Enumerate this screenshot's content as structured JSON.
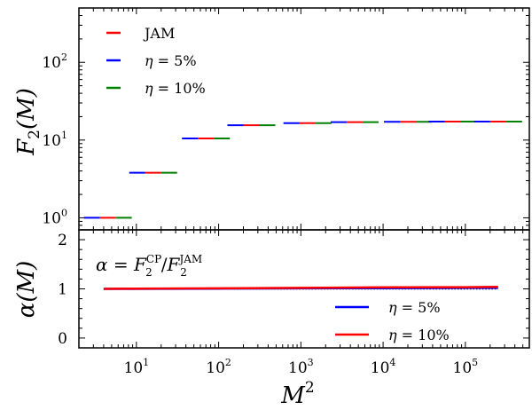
{
  "chart_data": [
    {
      "type": "scatter",
      "panel": "top",
      "yscale": "log",
      "xscale": "log",
      "ylabel": {
        "base": "F",
        "sub": "2",
        "arg": "(M)"
      },
      "ylim": [
        0.7,
        500
      ],
      "yticks": [
        {
          "value": 1,
          "base": "10",
          "exp": "0"
        },
        {
          "value": 10,
          "base": "10",
          "exp": "1"
        },
        {
          "value": 100,
          "base": "10",
          "exp": "2"
        }
      ],
      "legend_position": "top-left",
      "series": [
        {
          "name": "JAM",
          "color": "#ff0000",
          "offset": 0
        },
        {
          "name_prefix": "η",
          "name_suffix": " = 5%",
          "color": "#0000ff",
          "offset": -1
        },
        {
          "name_prefix": "η",
          "name_suffix": " = 10%",
          "color": "#008000",
          "offset": 1
        }
      ],
      "points": [
        {
          "x": 4.5,
          "y": 1.0
        },
        {
          "x": 16,
          "y": 3.8
        },
        {
          "x": 70,
          "y": 10.5
        },
        {
          "x": 250,
          "y": 15.5
        },
        {
          "x": 1200,
          "y": 16.5
        },
        {
          "x": 4500,
          "y": 17.0
        },
        {
          "x": 20000,
          "y": 17.2
        },
        {
          "x": 70000,
          "y": 17.3
        },
        {
          "x": 250000,
          "y": 17.3
        }
      ]
    },
    {
      "type": "line",
      "panel": "bottom",
      "xscale": "log",
      "xlabel": {
        "base": "M",
        "exp": "2"
      },
      "ylabel": {
        "base": "α",
        "arg": "(M)"
      },
      "xlim": [
        2,
        600000
      ],
      "ylim": [
        -0.2,
        2.2
      ],
      "xticks": [
        {
          "value": 10,
          "base": "10",
          "exp": "1"
        },
        {
          "value": 100,
          "base": "10",
          "exp": "2"
        },
        {
          "value": 1000,
          "base": "10",
          "exp": "3"
        },
        {
          "value": 10000,
          "base": "10",
          "exp": "4"
        },
        {
          "value": 100000,
          "base": "10",
          "exp": "5"
        }
      ],
      "yticks": [
        {
          "value": 0,
          "label": "0"
        },
        {
          "value": 1,
          "label": "1"
        },
        {
          "value": 2,
          "label": "2"
        }
      ],
      "annotation": {
        "lhs": "α",
        "eq": " = ",
        "num_base": "F",
        "num_sub": "2",
        "num_sup": "CP",
        "slash": "/",
        "den_base": "F",
        "den_sub": "2",
        "den_sup": "JAM"
      },
      "legend_position": "bottom-right",
      "reference_line": {
        "y": 1,
        "style": "dotted",
        "color": "#000000"
      },
      "series": [
        {
          "name_prefix": "η",
          "name_suffix": " = 5%",
          "color": "#0000ff",
          "x": [
            4,
            10,
            100,
            1000,
            10000,
            100000,
            250000
          ],
          "y": [
            1.0,
            1.0,
            1.005,
            1.01,
            1.015,
            1.02,
            1.02
          ]
        },
        {
          "name_prefix": "η",
          "name_suffix": " = 10%",
          "color": "#ff0000",
          "x": [
            4,
            10,
            100,
            1000,
            10000,
            100000,
            250000
          ],
          "y": [
            1.0,
            1.005,
            1.01,
            1.02,
            1.03,
            1.035,
            1.04
          ]
        }
      ]
    }
  ]
}
